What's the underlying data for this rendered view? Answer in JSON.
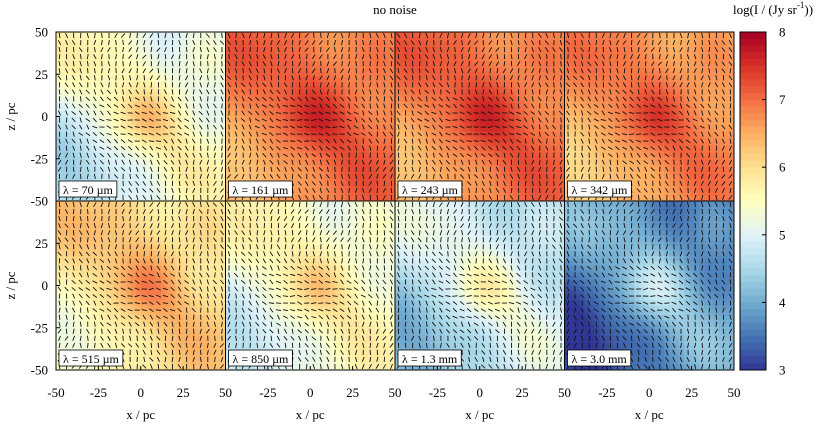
{
  "chart_data": {
    "type": "heatmap",
    "title": "no noise",
    "xlabel": "x / pc",
    "ylabel": "z / pc",
    "xlim": [
      -50,
      50
    ],
    "ylim": [
      -50,
      50
    ],
    "x_ticks": [
      "-50",
      "-25",
      "0",
      "25",
      "50"
    ],
    "y_ticks": [
      "50",
      "25",
      "0",
      "-25",
      "-50"
    ],
    "colorbar": {
      "label": "log(I / (Jy sr",
      "label_sup": "-1",
      "label_end": "))",
      "range": [
        3,
        8
      ],
      "ticks": [
        "8",
        "7",
        "6",
        "5",
        "4",
        "3"
      ],
      "colormap": [
        "#313695",
        "#4575b4",
        "#74add1",
        "#abd9e9",
        "#e0f3f8",
        "#ffffbf",
        "#fee090",
        "#fdae61",
        "#f46d43",
        "#d73027",
        "#a50026"
      ]
    },
    "panels": [
      {
        "wavelength": "λ = 70 µm",
        "base_level": 5.3,
        "amplitude": 1.3
      },
      {
        "wavelength": "λ = 161 µm",
        "base_level": 6.9,
        "amplitude": 0.9
      },
      {
        "wavelength": "λ = 243 µm",
        "base_level": 6.9,
        "amplitude": 0.9
      },
      {
        "wavelength": "λ = 342 µm",
        "base_level": 6.7,
        "amplitude": 0.9
      },
      {
        "wavelength": "λ = 515 µm",
        "base_level": 6.0,
        "amplitude": 1.1
      },
      {
        "wavelength": "λ = 850 µm",
        "base_level": 5.4,
        "amplitude": 1.1
      },
      {
        "wavelength": "λ = 1.3 mm",
        "base_level": 4.8,
        "amplitude": 1.2
      },
      {
        "wavelength": "λ = 3.0 mm",
        "base_level": 3.8,
        "amplitude": 1.3
      }
    ]
  }
}
